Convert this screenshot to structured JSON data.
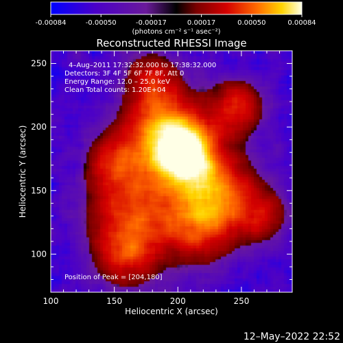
{
  "colorbar": {
    "tick_labels": [
      "-0.00084",
      "-0.00050",
      "-0.00017",
      "0.00017",
      "0.00050",
      "0.00084"
    ],
    "unit_label": "(photons cm⁻² s⁻¹ asec⁻²)",
    "colors": [
      "#0000ff",
      "#4b00c8",
      "#6a1a9a",
      "#000000",
      "#7a0000",
      "#d40000",
      "#ff6a00",
      "#ffd400",
      "#ffffe6"
    ]
  },
  "chart_data": {
    "type": "heatmap",
    "title": "Reconstructed RHESSI Image",
    "xlabel": "Heliocentric X (arcsec)",
    "ylabel": "Heliocentric Y (arcsec)",
    "xlim": [
      100,
      290
    ],
    "ylim": [
      70,
      260
    ],
    "x_ticks": [
      100,
      150,
      200,
      250
    ],
    "y_ticks": [
      100,
      150,
      200,
      250
    ],
    "peak": [
      204,
      180
    ],
    "info_lines": [
      "4–Aug–2011 17:32:32.000 to 17:38:32.000",
      "Detectors: 3F 4F 5F 6F 7F 8F, Att 0",
      "Energy Range: 12.0 – 25.0 keV",
      "Clean     Total counts: 1.20E+04"
    ],
    "peak_label": "Position of Peak = [204,180]"
  },
  "timestamp": "12–May–2022 22:52"
}
